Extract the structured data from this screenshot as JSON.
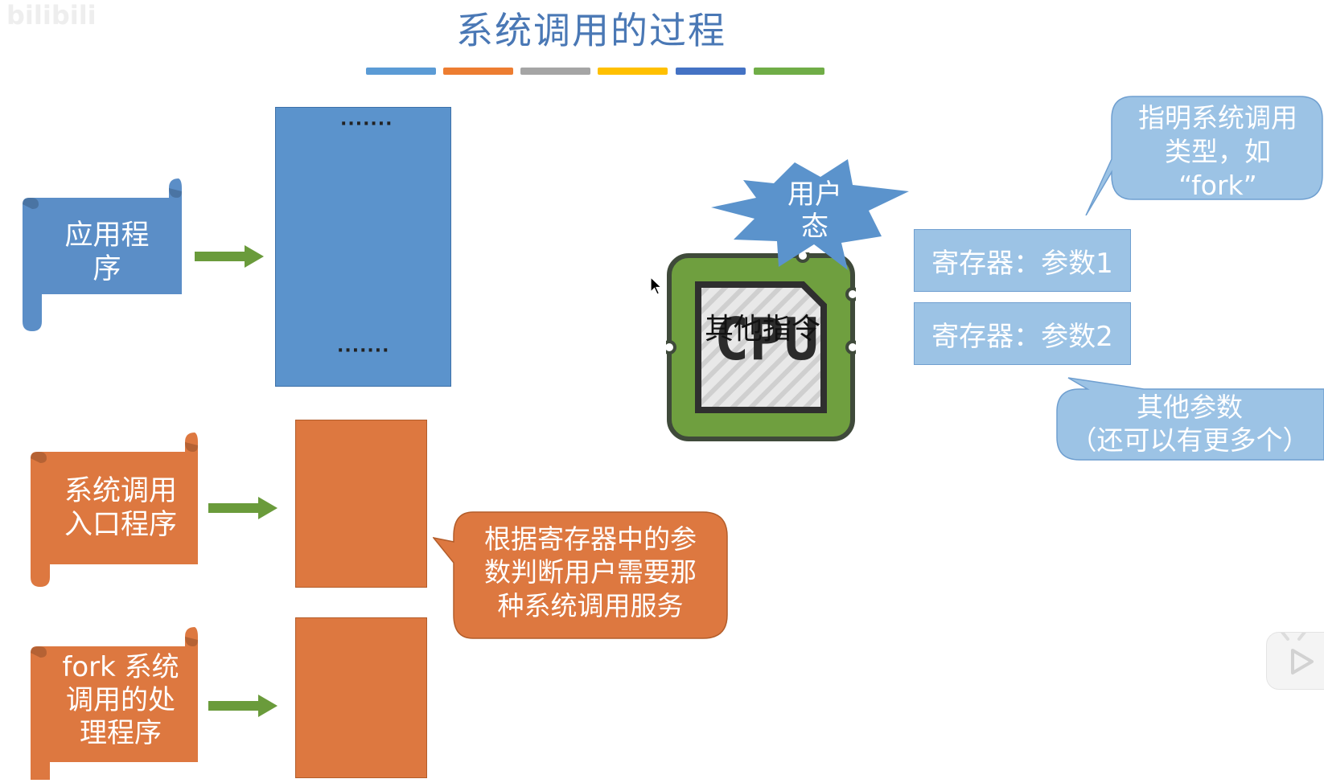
{
  "watermark": "bilibili",
  "title": "系统调用的过程",
  "stripe_colors": [
    "#5b9bd5",
    "#ed7d31",
    "#a5a5a5",
    "#ffc000",
    "#4472c4",
    "#70ad47"
  ],
  "scrolls": {
    "app": {
      "label_lines": [
        "应用程",
        "序"
      ],
      "color": "#5b8ec7"
    },
    "entry": {
      "label_lines": [
        "系统调用",
        "入口程序"
      ],
      "color": "#dd7840"
    },
    "fork": {
      "label_lines": [
        "fork 系统",
        "调用的处",
        "理程序"
      ],
      "color": "#dd7840"
    }
  },
  "memory_block": {
    "top_dots": "·······",
    "bottom_dots": "·······",
    "color": "#5b93cc"
  },
  "orange_color": "#dd7840",
  "cpu": {
    "chip_text": "CPU",
    "overlay_text": "其他指令",
    "color": "#6f9f3f"
  },
  "burst": {
    "lines": [
      "用户",
      "态"
    ],
    "color": "#5b93cc"
  },
  "registers": [
    "寄存器：参数1",
    "寄存器：参数2"
  ],
  "callouts": {
    "type": {
      "lines": [
        "指明系统调用",
        "类型，如",
        "“fork”"
      ]
    },
    "other": {
      "lines": [
        "其他参数",
        "（还可以有更多个）"
      ]
    },
    "judge": {
      "lines": [
        "根据寄存器中的参",
        "数判断用户需要那",
        "种系统调用服务"
      ]
    }
  }
}
